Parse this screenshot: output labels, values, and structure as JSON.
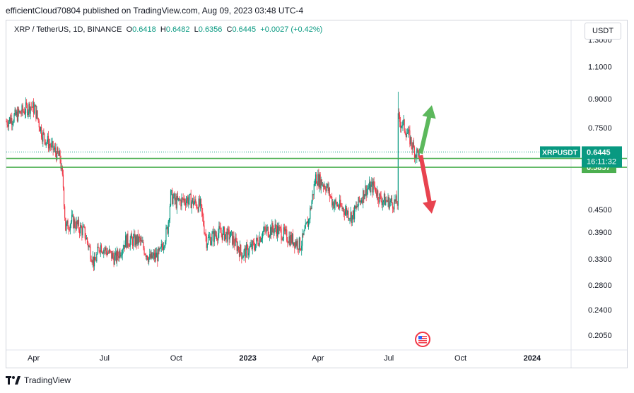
{
  "publish_line": "efficientCloud70804 published on TradingView.com, Aug 09, 2023 03:48 UTC-4",
  "legend": {
    "symbol": "XRP / TetherUS, 1D, BINANCE",
    "o_label": "O",
    "o_value": "0.6418",
    "h_label": "H",
    "h_value": "0.6482",
    "l_label": "L",
    "l_value": "0.6356",
    "c_label": "C",
    "c_value": "0.6445",
    "change": "+0.0027 (+0.42%)"
  },
  "currency_button": "USDT",
  "footer_brand": "TradingView",
  "colors": {
    "up": "#089981",
    "down": "#f23645",
    "level_line": "#4caf50",
    "price_label": "#089981",
    "level_label": "#4caf50",
    "arrow_up": "#5cb85c",
    "arrow_down": "#e8434f"
  },
  "chart_data": {
    "type": "candlestick",
    "scale": "log",
    "ylim": [
      0.19,
      1.35
    ],
    "y_ticks": [
      "1.3000",
      "1.1000",
      "0.9000",
      "0.7500",
      "0.6445",
      "0.4500",
      "0.3900",
      "0.3300",
      "0.2800",
      "0.2400",
      "0.2050"
    ],
    "y_tick_values": [
      1.3,
      1.1,
      0.9,
      0.75,
      0.6445,
      0.45,
      0.39,
      0.33,
      0.28,
      0.24,
      0.205
    ],
    "x_ticks": [
      "Apr",
      "Jul",
      "Oct",
      "2023",
      "Apr",
      "Jul",
      "Oct",
      "2024"
    ],
    "x_tick_dates": [
      "2022-04-01",
      "2022-07-01",
      "2022-10-01",
      "2023-01-01",
      "2023-04-01",
      "2023-07-01",
      "2023-10-01",
      "2024-01-01"
    ],
    "x_range": [
      "2022-02-25",
      "2024-02-20"
    ],
    "last_date": "2023-08-09",
    "price_curve": [
      [
        "2022-02-25",
        0.78
      ],
      [
        "2022-03-10",
        0.81
      ],
      [
        "2022-03-28",
        0.86
      ],
      [
        "2022-04-03",
        0.84
      ],
      [
        "2022-04-12",
        0.72
      ],
      [
        "2022-04-25",
        0.66
      ],
      [
        "2022-05-05",
        0.62
      ],
      [
        "2022-05-09",
        0.52
      ],
      [
        "2022-05-12",
        0.4
      ],
      [
        "2022-05-20",
        0.42
      ],
      [
        "2022-06-05",
        0.39
      ],
      [
        "2022-06-18",
        0.32
      ],
      [
        "2022-06-25",
        0.36
      ],
      [
        "2022-07-15",
        0.33
      ],
      [
        "2022-07-28",
        0.37
      ],
      [
        "2022-08-15",
        0.37
      ],
      [
        "2022-08-28",
        0.33
      ],
      [
        "2022-09-10",
        0.34
      ],
      [
        "2022-09-20",
        0.4
      ],
      [
        "2022-09-24",
        0.49
      ],
      [
        "2022-10-01",
        0.47
      ],
      [
        "2022-10-15",
        0.48
      ],
      [
        "2022-11-01",
        0.46
      ],
      [
        "2022-11-09",
        0.37
      ],
      [
        "2022-11-25",
        0.39
      ],
      [
        "2022-12-10",
        0.38
      ],
      [
        "2022-12-25",
        0.34
      ],
      [
        "2023-01-10",
        0.36
      ],
      [
        "2023-01-20",
        0.39
      ],
      [
        "2023-02-05",
        0.4
      ],
      [
        "2023-02-20",
        0.38
      ],
      [
        "2023-03-10",
        0.36
      ],
      [
        "2023-03-20",
        0.42
      ],
      [
        "2023-03-29",
        0.55
      ],
      [
        "2023-04-12",
        0.52
      ],
      [
        "2023-04-20",
        0.47
      ],
      [
        "2023-05-05",
        0.45
      ],
      [
        "2023-05-15",
        0.43
      ],
      [
        "2023-06-01",
        0.51
      ],
      [
        "2023-06-12",
        0.52
      ],
      [
        "2023-06-20",
        0.48
      ],
      [
        "2023-07-05",
        0.47
      ],
      [
        "2023-07-12",
        0.47
      ],
      [
        "2023-07-13",
        0.79
      ],
      [
        "2023-07-20",
        0.76
      ],
      [
        "2023-07-28",
        0.7
      ],
      [
        "2023-08-04",
        0.64
      ],
      [
        "2023-08-09",
        0.6445
      ]
    ],
    "spike": {
      "date": "2023-07-13",
      "high": 0.94
    },
    "last_price": 0.6445,
    "countdown": "16:11:32",
    "symbol_tag": "XRPUSDT",
    "levels": [
      {
        "value": 0.619,
        "label": "0.6190"
      },
      {
        "value": 0.5857,
        "label": "0.5857"
      }
    ],
    "annotations": [
      {
        "type": "arrow-up",
        "from_date": "2023-08-11",
        "from_value": 0.64,
        "to_date": "2023-08-25",
        "to_value": 0.86
      },
      {
        "type": "arrow-down",
        "from_date": "2023-08-11",
        "from_value": 0.63,
        "to_date": "2023-08-25",
        "to_value": 0.44
      }
    ]
  }
}
